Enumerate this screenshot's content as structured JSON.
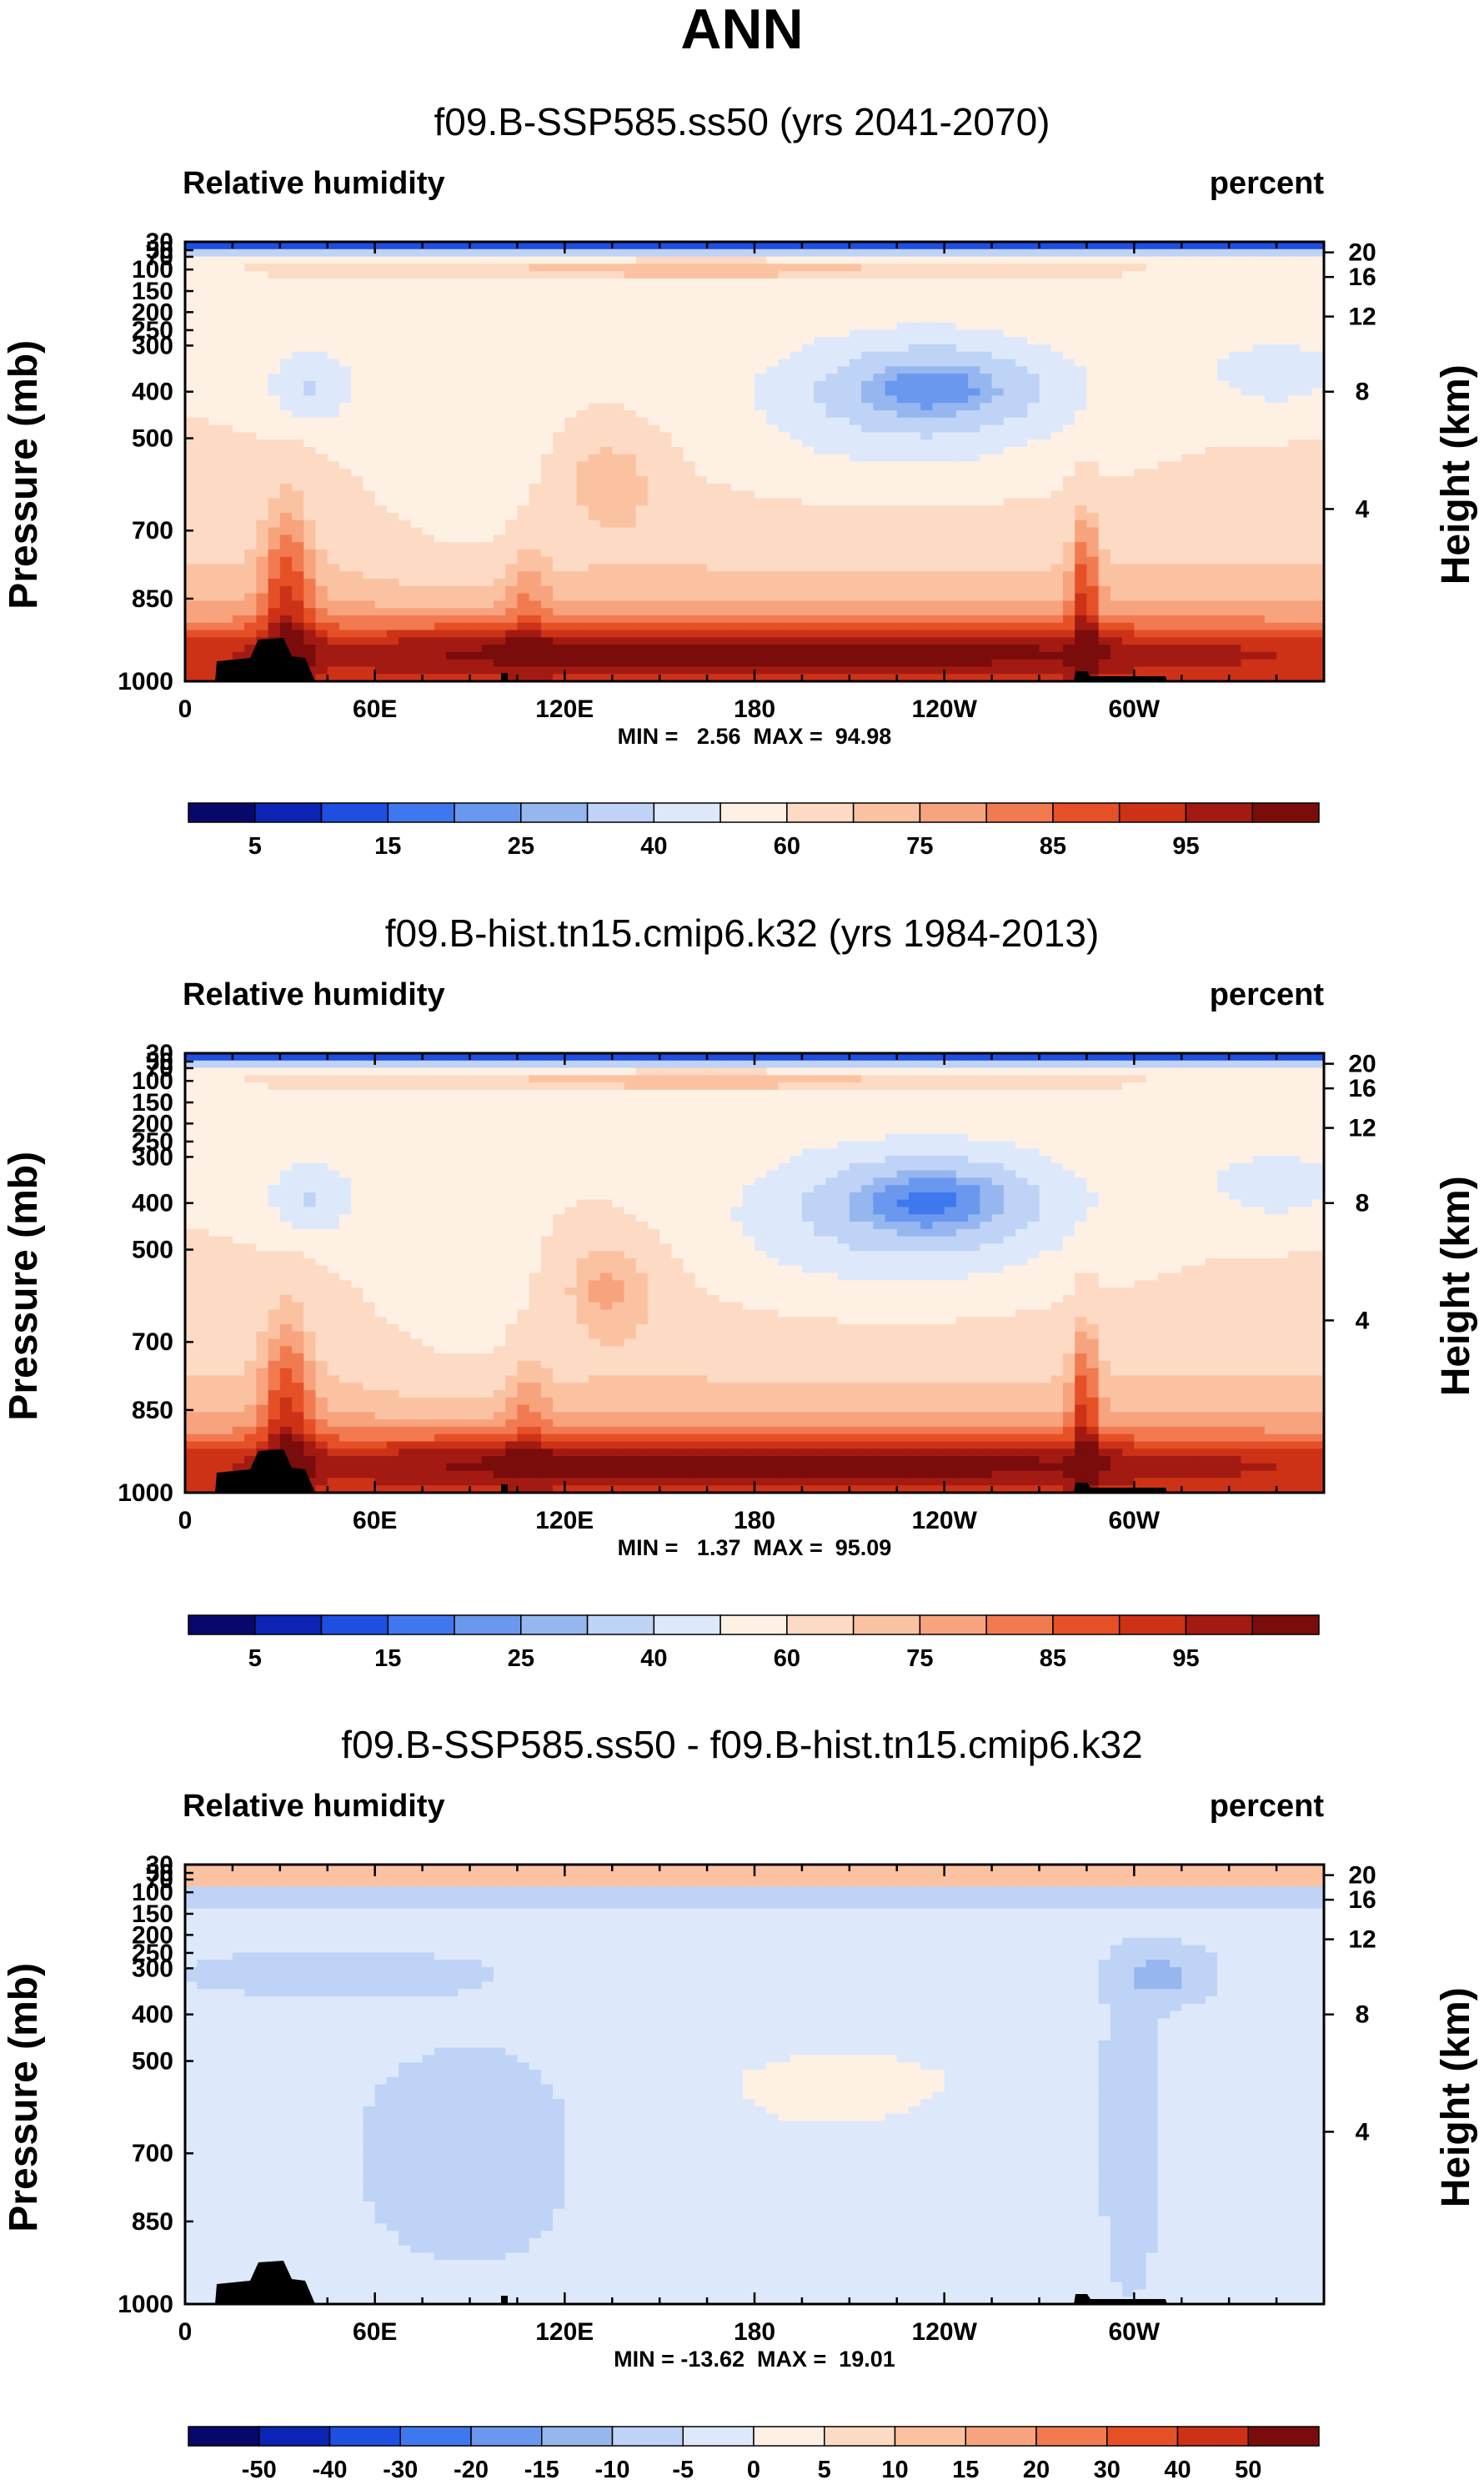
{
  "chart_data": {
    "type": "heatmap",
    "title": "ANN",
    "panels": [
      {
        "subtitle": "f09.B-SSP585.ss50 (yrs 2041-2070)",
        "left_label": "Relative humidity",
        "right_label": "percent",
        "ylabel": "Pressure (mb)",
        "y2label": "Height (km)",
        "x_ticks": [
          "0",
          "60E",
          "120E",
          "180",
          "120W",
          "60W"
        ],
        "y_ticks": [
          "30",
          "50",
          "70",
          "100",
          "150",
          "200",
          "250",
          "300",
          "400",
          "500",
          "700",
          "850",
          "1000"
        ],
        "y2_ticks": [
          "20",
          "16",
          "12",
          "8",
          "4"
        ],
        "minmax": "MIN =   2.56  MAX =  94.98",
        "colorbar_labels": [
          "5",
          "15",
          "25",
          "40",
          "60",
          "75",
          "85",
          "95"
        ],
        "colorbar_levels": [
          0,
          5,
          10,
          15,
          20,
          25,
          30,
          40,
          50,
          60,
          70,
          75,
          80,
          85,
          90,
          95,
          100
        ],
        "colorbar_colors": [
          "#08086b",
          "#0b24b4",
          "#1e4fe0",
          "#3f78ee",
          "#6a98ee",
          "#96b6f0",
          "#bed3f5",
          "#dde9fb",
          "#fff0e4",
          "#fddac4",
          "#fbc2a2",
          "#f7a37d",
          "#f17a51",
          "#e65026",
          "#cd3217",
          "#a31a12",
          "#7b0c0c"
        ],
        "zrange": [
          2.56,
          94.98
        ]
      },
      {
        "subtitle": "f09.B-hist.tn15.cmip6.k32 (yrs 1984-2013)",
        "left_label": "Relative humidity",
        "right_label": "percent",
        "ylabel": "Pressure (mb)",
        "y2label": "Height (km)",
        "x_ticks": [
          "0",
          "60E",
          "120E",
          "180",
          "120W",
          "60W"
        ],
        "y_ticks": [
          "30",
          "50",
          "70",
          "100",
          "150",
          "200",
          "250",
          "300",
          "400",
          "500",
          "700",
          "850",
          "1000"
        ],
        "y2_ticks": [
          "20",
          "16",
          "12",
          "8",
          "4"
        ],
        "minmax": "MIN =   1.37  MAX =  95.09",
        "colorbar_labels": [
          "5",
          "15",
          "25",
          "40",
          "60",
          "75",
          "85",
          "95"
        ],
        "colorbar_levels": [
          0,
          5,
          10,
          15,
          20,
          25,
          30,
          40,
          50,
          60,
          70,
          75,
          80,
          85,
          90,
          95,
          100
        ],
        "colorbar_colors": [
          "#08086b",
          "#0b24b4",
          "#1e4fe0",
          "#3f78ee",
          "#6a98ee",
          "#96b6f0",
          "#bed3f5",
          "#dde9fb",
          "#fff0e4",
          "#fddac4",
          "#fbc2a2",
          "#f7a37d",
          "#f17a51",
          "#e65026",
          "#cd3217",
          "#a31a12",
          "#7b0c0c"
        ],
        "zrange": [
          1.37,
          95.09
        ]
      },
      {
        "subtitle": "f09.B-SSP585.ss50 - f09.B-hist.tn15.cmip6.k32",
        "left_label": "Relative humidity",
        "right_label": "percent",
        "ylabel": "Pressure (mb)",
        "y2label": "Height (km)",
        "x_ticks": [
          "0",
          "60E",
          "120E",
          "180",
          "120W",
          "60W"
        ],
        "y_ticks": [
          "30",
          "50",
          "70",
          "100",
          "150",
          "200",
          "250",
          "300",
          "400",
          "500",
          "700",
          "850",
          "1000"
        ],
        "y2_ticks": [
          "20",
          "16",
          "12",
          "8",
          "4"
        ],
        "minmax": "MIN = -13.62  MAX =  19.01",
        "colorbar_labels": [
          "-50",
          "-40",
          "-30",
          "-20",
          "-15",
          "-10",
          "-5",
          "0",
          "5",
          "10",
          "15",
          "20",
          "30",
          "40",
          "50"
        ],
        "colorbar_levels": [
          -50,
          -40,
          -30,
          -20,
          -15,
          -10,
          -5,
          0,
          5,
          10,
          15,
          20,
          30,
          40,
          50
        ],
        "colorbar_colors": [
          "#08086b",
          "#0b24b4",
          "#1e4fe0",
          "#3f78ee",
          "#6a98ee",
          "#96b6f0",
          "#bed3f5",
          "#dde9fb",
          "#fff0e4",
          "#fddac4",
          "#fbc2a2",
          "#f7a37d",
          "#f17a51",
          "#e65026",
          "#cd3217",
          "#7b0c0c"
        ],
        "zrange": [
          -13.62,
          19.01
        ]
      }
    ]
  }
}
